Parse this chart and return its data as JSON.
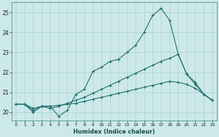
{
  "xlabel": "Humidex (Indice chaleur)",
  "background_color": "#cce8e8",
  "grid_color": "#aad0d0",
  "line_color": "#1a6b6b",
  "xlim": [
    -0.5,
    23.5
  ],
  "ylim": [
    19.6,
    25.5
  ],
  "yticks": [
    20,
    21,
    22,
    23,
    24,
    25
  ],
  "xticks": [
    0,
    1,
    2,
    3,
    4,
    5,
    6,
    7,
    8,
    9,
    10,
    11,
    12,
    13,
    14,
    15,
    16,
    17,
    18,
    19,
    20,
    21,
    22,
    23
  ],
  "line1_x": [
    0,
    1,
    2,
    3,
    4,
    5,
    6,
    7,
    8,
    9,
    10,
    11,
    12,
    13,
    14,
    15,
    16,
    17,
    18,
    19,
    20,
    21,
    22,
    23
  ],
  "line1_y": [
    20.4,
    20.4,
    20.0,
    20.3,
    20.3,
    19.8,
    20.1,
    20.9,
    21.15,
    22.05,
    22.25,
    22.55,
    22.65,
    23.0,
    23.35,
    24.0,
    24.85,
    25.2,
    24.6,
    22.9,
    21.9,
    21.5,
    20.9,
    20.6
  ],
  "line2_x": [
    0,
    1,
    2,
    3,
    4,
    5,
    6,
    7,
    8,
    9,
    10,
    11,
    12,
    13,
    14,
    15,
    16,
    17,
    18,
    19,
    20,
    21,
    22,
    23
  ],
  "line2_y": [
    20.4,
    20.4,
    20.1,
    20.3,
    20.2,
    20.3,
    20.45,
    20.6,
    20.75,
    20.95,
    21.15,
    21.35,
    21.55,
    21.75,
    21.95,
    22.15,
    22.35,
    22.55,
    22.7,
    22.9,
    21.9,
    21.4,
    20.9,
    20.6
  ],
  "line3_x": [
    0,
    1,
    2,
    3,
    4,
    5,
    6,
    7,
    8,
    9,
    10,
    11,
    12,
    13,
    14,
    15,
    16,
    17,
    18,
    19,
    20,
    21,
    22,
    23
  ],
  "line3_y": [
    20.4,
    20.4,
    20.2,
    20.3,
    20.3,
    20.35,
    20.4,
    20.45,
    20.55,
    20.65,
    20.75,
    20.85,
    20.95,
    21.05,
    21.15,
    21.25,
    21.35,
    21.45,
    21.55,
    21.5,
    21.4,
    21.2,
    20.9,
    20.6
  ]
}
